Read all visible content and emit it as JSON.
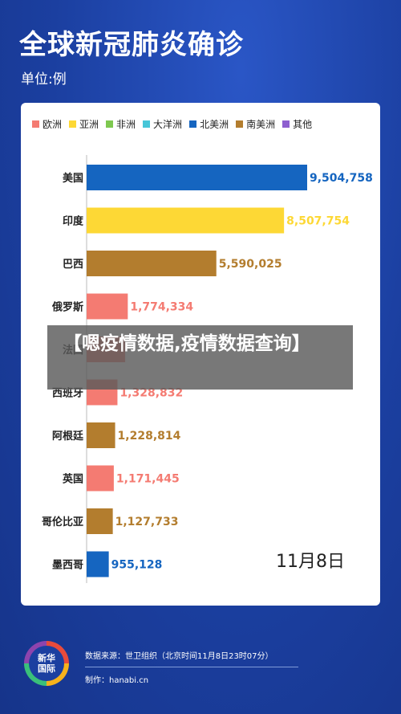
{
  "title": "全球新冠肺炎确诊",
  "unit": "单位:例",
  "date_label": "11月8日",
  "overlay_text": "【嗯疫情数据,疫情数据查询】",
  "legend": [
    {
      "label": "欧洲",
      "color": "#f47b72"
    },
    {
      "label": "亚洲",
      "color": "#fdd835"
    },
    {
      "label": "非洲",
      "color": "#7ec850"
    },
    {
      "label": "大洋洲",
      "color": "#47c6d8"
    },
    {
      "label": "北美洲",
      "color": "#1565c0"
    },
    {
      "label": "南美洲",
      "color": "#b37d2e"
    },
    {
      "label": "其他",
      "color": "#8e5fd0"
    }
  ],
  "footer": {
    "logo_text": "新华\n国际",
    "source": "数据来源：世卫组织（北京时间11月8日23时07分）",
    "credit": "制作：hanabi.cn"
  },
  "chart_data": {
    "type": "bar",
    "orientation": "horizontal",
    "categories": [
      "美国",
      "印度",
      "巴西",
      "俄罗斯",
      "法国",
      "西班牙",
      "阿根廷",
      "英国",
      "哥伦比亚",
      "墨西哥"
    ],
    "values": [
      9504758,
      8507754,
      5590025,
      1774334,
      1661853,
      1328832,
      1228814,
      1171445,
      1127733,
      955128
    ],
    "value_labels": [
      "9,504,758",
      "8,507,754",
      "5,590,025",
      "1,774,334",
      "",
      "1,328,832",
      "1,228,814",
      "1,171,445",
      "1,127,733",
      "955,128"
    ],
    "colors": [
      "#1565c0",
      "#fdd835",
      "#b37d2e",
      "#f47b72",
      "#f47b72",
      "#f47b72",
      "#b37d2e",
      "#f47b72",
      "#b37d2e",
      "#1565c0"
    ],
    "label_colors": [
      "#1565c0",
      "#fdd835",
      "#b37d2e",
      "#f47b72",
      "#f47b72",
      "#f47b72",
      "#b37d2e",
      "#f47b72",
      "#b37d2e",
      "#1565c0"
    ],
    "xlim": [
      0,
      9504758
    ],
    "legend_position": "top"
  }
}
